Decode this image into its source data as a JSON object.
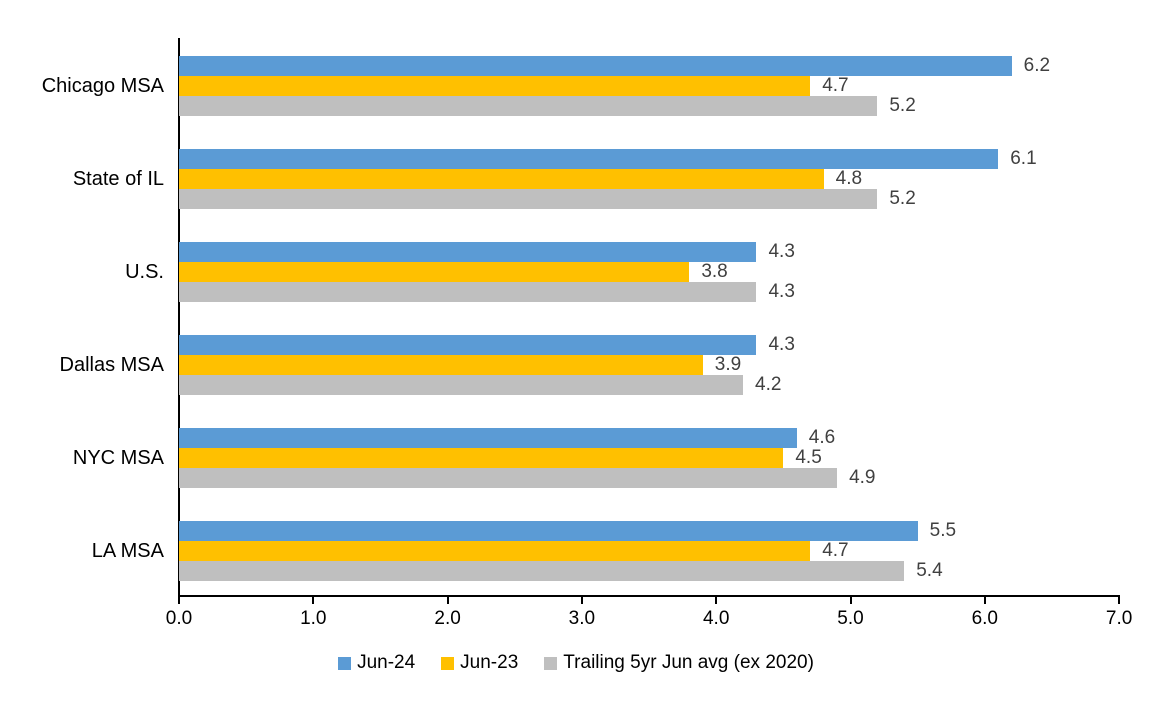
{
  "chart_data": {
    "type": "bar",
    "orientation": "horizontal",
    "title": "",
    "xlabel": "",
    "ylabel": "",
    "categories": [
      "Chicago MSA",
      "State of IL",
      "U.S.",
      "Dallas MSA",
      "NYC MSA",
      "LA MSA"
    ],
    "series": [
      {
        "name": "Jun-24",
        "color": "#5B9BD5",
        "values": [
          6.2,
          6.1,
          4.3,
          4.3,
          4.6,
          5.5
        ]
      },
      {
        "name": "Jun-23",
        "color": "#FFC000",
        "values": [
          4.7,
          4.8,
          3.8,
          3.9,
          4.5,
          4.7
        ]
      },
      {
        "name": "Trailing 5yr Jun avg (ex 2020)",
        "color": "#BFBFBF",
        "values": [
          5.2,
          5.2,
          4.3,
          4.2,
          4.9,
          5.4
        ]
      }
    ],
    "xlim": [
      0.0,
      7.0
    ],
    "x_ticks": [
      "0.0",
      "1.0",
      "2.0",
      "3.0",
      "4.0",
      "5.0",
      "6.0",
      "7.0"
    ],
    "grid": false,
    "legend_position": "bottom",
    "value_labels_shown": true,
    "colors": {
      "axis": "#000000",
      "value_label_text": "#404040",
      "category_text": "#000000",
      "tick_text": "#000000",
      "background": "#FFFFFF"
    }
  }
}
